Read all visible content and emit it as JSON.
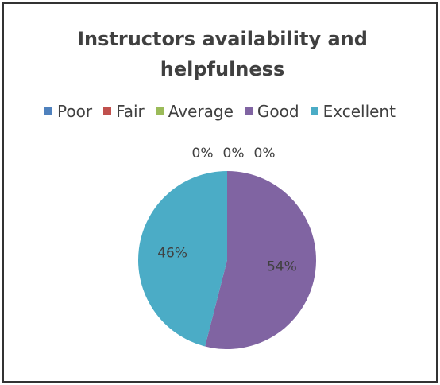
{
  "chart_data": {
    "type": "pie",
    "title": "Instructors availability and helpfulness",
    "categories": [
      "Poor",
      "Fair",
      "Average",
      "Good",
      "Excellent"
    ],
    "values": [
      0,
      0,
      0,
      54,
      46
    ],
    "value_labels": [
      "0%",
      "0%",
      "0%",
      "54%",
      "46%"
    ],
    "colors": [
      "#4f81bd",
      "#c0504d",
      "#9bbb59",
      "#8064a2",
      "#4bacc6"
    ],
    "legend": "top"
  }
}
